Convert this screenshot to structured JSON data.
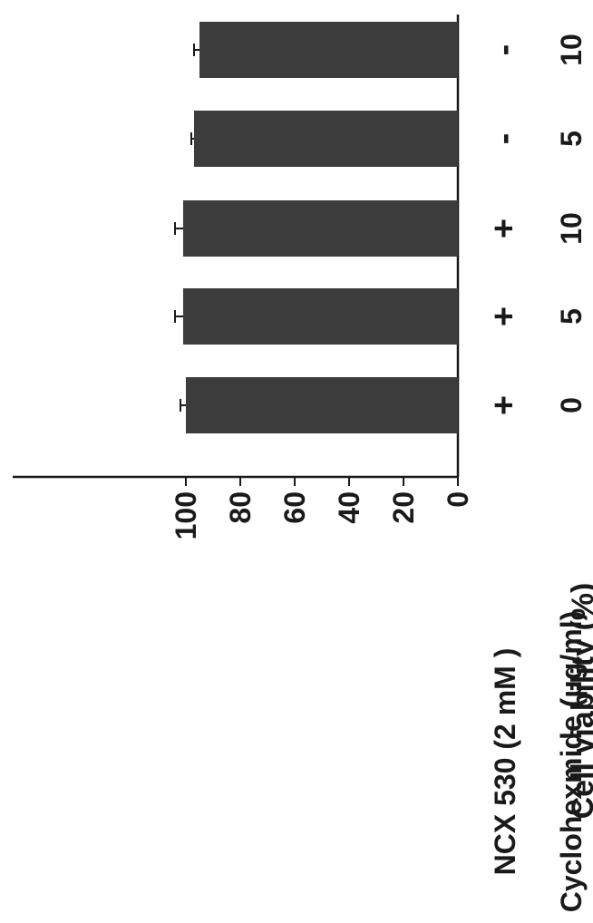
{
  "chart_data": {
    "type": "bar",
    "orientation": "horizontal",
    "ylabel": "Cell viability (%)",
    "ylim": [
      0,
      110
    ],
    "yticks": [
      0,
      20,
      40,
      60,
      80,
      100
    ],
    "grid": false,
    "row_labels": [
      "NCX 530 (2 mM )",
      "Cyclohexmide (μg/ml)"
    ],
    "categories": [
      {
        "ncx": "+",
        "chx": "0"
      },
      {
        "ncx": "+",
        "chx": "5"
      },
      {
        "ncx": "+",
        "chx": "10"
      },
      {
        "ncx": "-",
        "chx": "5"
      },
      {
        "ncx": "-",
        "chx": "10"
      }
    ],
    "values": [
      100,
      101,
      101,
      97,
      95
    ],
    "errors": [
      2,
      3,
      3,
      1,
      2
    ],
    "bar_color": "#3c3c3c"
  }
}
